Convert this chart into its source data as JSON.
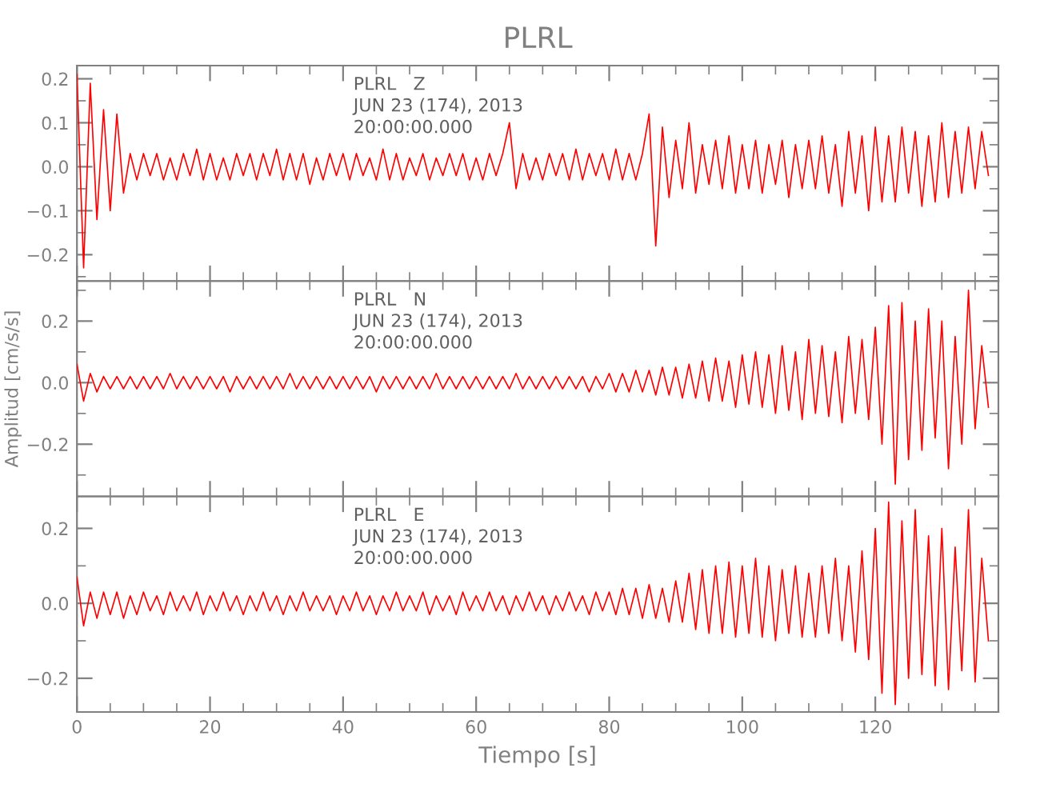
{
  "chart_data": [
    {
      "type": "line",
      "title": "PLRL",
      "annotations": [
        "PLRL   Z",
        "JUN 23 (174), 2013",
        "20:00:00.000"
      ],
      "tick_labels": "y",
      "xlim": [
        0,
        138.5
      ],
      "xticks": [
        0,
        20,
        40,
        60,
        80,
        100,
        120
      ],
      "ylim": [
        -0.26,
        0.23
      ],
      "yticks": [
        {
          "value": -0.2,
          "label": "−0.2"
        },
        {
          "value": -0.1,
          "label": "−0.1"
        },
        {
          "value": 0,
          "label": "0.0"
        },
        {
          "value": 0.1,
          "label": "0.1"
        },
        {
          "value": 0.2,
          "label": "0.2"
        }
      ],
      "x": [
        0,
        1,
        2,
        3,
        4,
        5,
        6,
        7,
        8,
        9,
        10,
        11,
        12,
        13,
        14,
        15,
        16,
        17,
        18,
        19,
        20,
        21,
        22,
        23,
        24,
        25,
        26,
        27,
        28,
        29,
        30,
        31,
        32,
        33,
        34,
        35,
        36,
        37,
        38,
        39,
        40,
        41,
        42,
        43,
        44,
        45,
        46,
        47,
        48,
        49,
        50,
        51,
        52,
        53,
        54,
        55,
        56,
        57,
        58,
        59,
        60,
        61,
        62,
        63,
        64,
        65,
        66,
        67,
        68,
        69,
        70,
        71,
        72,
        73,
        74,
        75,
        76,
        77,
        78,
        79,
        80,
        81,
        82,
        83,
        84,
        85,
        86,
        87,
        88,
        89,
        90,
        91,
        92,
        93,
        94,
        95,
        96,
        97,
        98,
        99,
        100,
        101,
        102,
        103,
        104,
        105,
        106,
        107,
        108,
        109,
        110,
        111,
        112,
        113,
        114,
        115,
        116,
        117,
        118,
        119,
        120,
        121,
        122,
        123,
        124,
        125,
        126,
        127,
        128,
        129,
        130,
        131,
        132,
        133,
        134,
        135,
        136,
        137
      ],
      "series": [
        {
          "color": "#ff0000",
          "values": [
            0.21,
            -0.23,
            0.19,
            -0.12,
            0.13,
            -0.1,
            0.12,
            -0.06,
            0.03,
            -0.03,
            0.03,
            -0.02,
            0.03,
            -0.03,
            0.02,
            -0.03,
            0.03,
            -0.02,
            0.04,
            -0.03,
            0.03,
            -0.03,
            0.02,
            -0.03,
            0.03,
            -0.02,
            0.03,
            -0.03,
            0.03,
            -0.02,
            0.04,
            -0.03,
            0.03,
            -0.03,
            0.03,
            -0.04,
            0.02,
            -0.03,
            0.03,
            -0.02,
            0.03,
            -0.03,
            0.03,
            -0.02,
            0.02,
            -0.03,
            0.04,
            -0.03,
            0.03,
            -0.03,
            0.02,
            -0.02,
            0.03,
            -0.03,
            0.02,
            -0.02,
            0.03,
            -0.02,
            0.03,
            -0.03,
            0.02,
            -0.03,
            0.03,
            -0.02,
            0.03,
            0.1,
            -0.05,
            0.03,
            -0.03,
            0.02,
            -0.03,
            0.03,
            -0.02,
            0.03,
            -0.03,
            0.04,
            -0.03,
            0.03,
            -0.02,
            0.03,
            -0.03,
            0.04,
            -0.03,
            0.03,
            -0.03,
            0.03,
            0.12,
            -0.18,
            0.09,
            -0.07,
            0.06,
            -0.05,
            0.1,
            -0.06,
            0.05,
            -0.04,
            0.06,
            -0.05,
            0.07,
            -0.06,
            0.05,
            -0.05,
            0.06,
            -0.06,
            0.05,
            -0.04,
            0.06,
            -0.07,
            0.05,
            -0.05,
            0.06,
            -0.05,
            0.07,
            -0.06,
            0.05,
            -0.09,
            0.08,
            -0.06,
            0.07,
            -0.1,
            0.09,
            -0.08,
            0.07,
            -0.08,
            0.09,
            -0.06,
            0.08,
            -0.09,
            0.07,
            -0.08,
            0.1,
            -0.07,
            0.08,
            -0.06,
            0.09,
            -0.05,
            0.08,
            -0.02
          ]
        }
      ]
    },
    {
      "type": "line",
      "ylabel": "Amplitud [cm/s/s]",
      "annotations": [
        "PLRL   N",
        "JUN 23 (174), 2013",
        "20:00:00.000"
      ],
      "tick_labels": "y",
      "xlim": [
        0,
        138.5
      ],
      "xticks": [
        0,
        20,
        40,
        60,
        80,
        100,
        120
      ],
      "ylim": [
        -0.37,
        0.33
      ],
      "yticks": [
        {
          "value": -0.2,
          "label": "−0.2"
        },
        {
          "value": 0,
          "label": "0.0"
        },
        {
          "value": 0.2,
          "label": "0.2"
        }
      ],
      "x": [
        0,
        1,
        2,
        3,
        4,
        5,
        6,
        7,
        8,
        9,
        10,
        11,
        12,
        13,
        14,
        15,
        16,
        17,
        18,
        19,
        20,
        21,
        22,
        23,
        24,
        25,
        26,
        27,
        28,
        29,
        30,
        31,
        32,
        33,
        34,
        35,
        36,
        37,
        38,
        39,
        40,
        41,
        42,
        43,
        44,
        45,
        46,
        47,
        48,
        49,
        50,
        51,
        52,
        53,
        54,
        55,
        56,
        57,
        58,
        59,
        60,
        61,
        62,
        63,
        64,
        65,
        66,
        67,
        68,
        69,
        70,
        71,
        72,
        73,
        74,
        75,
        76,
        77,
        78,
        79,
        80,
        81,
        82,
        83,
        84,
        85,
        86,
        87,
        88,
        89,
        90,
        91,
        92,
        93,
        94,
        95,
        96,
        97,
        98,
        99,
        100,
        101,
        102,
        103,
        104,
        105,
        106,
        107,
        108,
        109,
        110,
        111,
        112,
        113,
        114,
        115,
        116,
        117,
        118,
        119,
        120,
        121,
        122,
        123,
        124,
        125,
        126,
        127,
        128,
        129,
        130,
        131,
        132,
        133,
        134,
        135,
        136,
        137
      ],
      "series": [
        {
          "color": "#ff0000",
          "values": [
            0.06,
            -0.06,
            0.03,
            -0.03,
            0.02,
            -0.02,
            0.02,
            -0.02,
            0.02,
            -0.02,
            0.02,
            -0.02,
            0.02,
            -0.02,
            0.03,
            -0.02,
            0.02,
            -0.02,
            0.02,
            -0.02,
            0.02,
            -0.02,
            0.02,
            -0.03,
            0.02,
            -0.02,
            0.02,
            -0.02,
            0.02,
            -0.02,
            0.02,
            -0.02,
            0.03,
            -0.02,
            0.02,
            -0.02,
            0.02,
            -0.02,
            0.02,
            -0.02,
            0.02,
            -0.02,
            0.02,
            -0.02,
            0.02,
            -0.03,
            0.02,
            -0.02,
            0.02,
            -0.02,
            0.02,
            -0.02,
            0.02,
            -0.02,
            0.03,
            -0.02,
            0.02,
            -0.02,
            0.02,
            -0.02,
            0.02,
            -0.02,
            0.02,
            -0.02,
            0.02,
            -0.02,
            0.03,
            -0.02,
            0.02,
            -0.02,
            0.02,
            -0.02,
            0.02,
            -0.02,
            0.02,
            -0.02,
            0.02,
            -0.03,
            0.02,
            -0.02,
            0.03,
            -0.03,
            0.03,
            -0.03,
            0.04,
            -0.03,
            0.04,
            -0.04,
            0.05,
            -0.04,
            0.05,
            -0.05,
            0.06,
            -0.05,
            0.07,
            -0.06,
            0.08,
            -0.06,
            0.07,
            -0.08,
            0.09,
            -0.07,
            0.1,
            -0.08,
            0.09,
            -0.1,
            0.12,
            -0.09,
            0.1,
            -0.12,
            0.14,
            -0.1,
            0.12,
            -0.11,
            0.1,
            -0.13,
            0.15,
            -0.1,
            0.14,
            -0.12,
            0.18,
            -0.2,
            0.25,
            -0.33,
            0.26,
            -0.25,
            0.2,
            -0.22,
            0.24,
            -0.18,
            0.2,
            -0.28,
            0.15,
            -0.2,
            0.3,
            -0.15,
            0.12,
            -0.08
          ]
        }
      ]
    },
    {
      "type": "line",
      "xlabel": "Tiempo [s]",
      "annotations": [
        "PLRL   E",
        "JUN 23 (174), 2013",
        "20:00:00.000"
      ],
      "xlim": [
        0,
        138.5
      ],
      "xticks": [
        0,
        20,
        40,
        60,
        80,
        100,
        120
      ],
      "ylim": [
        -0.29,
        0.285
      ],
      "yticks": [
        {
          "value": -0.2,
          "label": "−0.2"
        },
        {
          "value": 0,
          "label": "0.0"
        },
        {
          "value": 0.2,
          "label": "0.2"
        }
      ],
      "x": [
        0,
        1,
        2,
        3,
        4,
        5,
        6,
        7,
        8,
        9,
        10,
        11,
        12,
        13,
        14,
        15,
        16,
        17,
        18,
        19,
        20,
        21,
        22,
        23,
        24,
        25,
        26,
        27,
        28,
        29,
        30,
        31,
        32,
        33,
        34,
        35,
        36,
        37,
        38,
        39,
        40,
        41,
        42,
        43,
        44,
        45,
        46,
        47,
        48,
        49,
        50,
        51,
        52,
        53,
        54,
        55,
        56,
        57,
        58,
        59,
        60,
        61,
        62,
        63,
        64,
        65,
        66,
        67,
        68,
        69,
        70,
        71,
        72,
        73,
        74,
        75,
        76,
        77,
        78,
        79,
        80,
        81,
        82,
        83,
        84,
        85,
        86,
        87,
        88,
        89,
        90,
        91,
        92,
        93,
        94,
        95,
        96,
        97,
        98,
        99,
        100,
        101,
        102,
        103,
        104,
        105,
        106,
        107,
        108,
        109,
        110,
        111,
        112,
        113,
        114,
        115,
        116,
        117,
        118,
        119,
        120,
        121,
        122,
        123,
        124,
        125,
        126,
        127,
        128,
        129,
        130,
        131,
        132,
        133,
        134,
        135,
        136,
        137
      ],
      "series": [
        {
          "color": "#ff0000",
          "values": [
            0.07,
            -0.06,
            0.03,
            -0.04,
            0.03,
            -0.03,
            0.03,
            -0.04,
            0.02,
            -0.03,
            0.03,
            -0.02,
            0.02,
            -0.03,
            0.03,
            -0.02,
            0.02,
            -0.02,
            0.03,
            -0.03,
            0.02,
            -0.02,
            0.03,
            -0.02,
            0.02,
            -0.03,
            0.02,
            -0.02,
            0.03,
            -0.02,
            0.02,
            -0.03,
            0.02,
            -0.02,
            0.03,
            -0.02,
            0.02,
            -0.02,
            0.02,
            -0.03,
            0.02,
            -0.02,
            0.03,
            -0.02,
            0.02,
            -0.03,
            0.02,
            -0.02,
            0.03,
            -0.02,
            0.02,
            -0.02,
            0.03,
            -0.03,
            0.02,
            -0.02,
            0.02,
            -0.03,
            0.03,
            -0.02,
            0.02,
            -0.02,
            0.03,
            -0.02,
            0.02,
            -0.03,
            0.02,
            -0.02,
            0.03,
            -0.02,
            0.02,
            -0.03,
            0.02,
            -0.02,
            0.03,
            -0.02,
            0.02,
            -0.03,
            0.03,
            -0.02,
            0.03,
            -0.03,
            0.04,
            -0.03,
            0.04,
            -0.04,
            0.05,
            -0.04,
            0.04,
            -0.05,
            0.06,
            -0.05,
            0.08,
            -0.07,
            0.09,
            -0.08,
            0.1,
            -0.08,
            0.11,
            -0.09,
            0.1,
            -0.08,
            0.12,
            -0.09,
            0.1,
            -0.1,
            0.09,
            -0.08,
            0.1,
            -0.09,
            0.08,
            -0.09,
            0.1,
            -0.08,
            0.12,
            -0.1,
            0.1,
            -0.13,
            0.14,
            -0.15,
            0.2,
            -0.24,
            0.27,
            -0.27,
            0.22,
            -0.2,
            0.25,
            -0.19,
            0.18,
            -0.22,
            0.2,
            -0.23,
            0.15,
            -0.18,
            0.25,
            -0.21,
            0.12,
            -0.1
          ]
        }
      ]
    }
  ]
}
